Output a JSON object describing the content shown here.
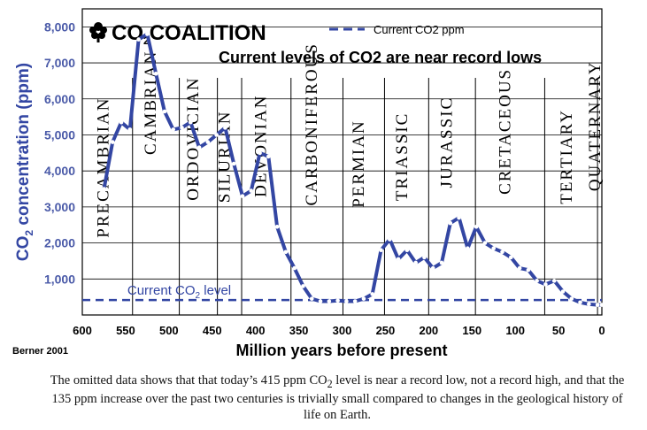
{
  "chart_data": {
    "type": "line",
    "brand": {
      "prefix": "CO",
      "sub": "2",
      "suffix": "COALITION"
    },
    "title": "Current levels of CO2 are near record lows",
    "legend": {
      "label": "Current CO2 ppm",
      "placement": "top-right"
    },
    "current_level": {
      "label_prefix": "Current CO",
      "label_sub": "2",
      "label_suffix": " level",
      "value": 415
    },
    "ylabel": {
      "prefix": "CO",
      "sub": "2",
      "suffix": " concentration (ppm)"
    },
    "xlabel": "Million years before present",
    "source": "Berner 2001",
    "xlim": [
      600,
      0
    ],
    "ylim": [
      0,
      8500
    ],
    "x_ticks": [
      600,
      550,
      500,
      450,
      400,
      350,
      300,
      250,
      200,
      150,
      100,
      50,
      0
    ],
    "y_ticks": [
      {
        "value": 1000,
        "label": "1,000"
      },
      {
        "value": 2000,
        "label": "2,000"
      },
      {
        "value": 3000,
        "label": "3,000"
      },
      {
        "value": 4000,
        "label": "4,000"
      },
      {
        "value": 5000,
        "label": "5,000"
      },
      {
        "value": 6000,
        "label": "6,000"
      },
      {
        "value": 7000,
        "label": "7,000"
      },
      {
        "value": 8000,
        "label": "8,000"
      }
    ],
    "period_boundaries": [
      542,
      488,
      444,
      416,
      359,
      299,
      251,
      200,
      146,
      66,
      5
    ],
    "periods": [
      {
        "name": "PRECAMBRIAN",
        "x": 570,
        "y": 4100
      },
      {
        "name": "CAMBRIAN",
        "x": 515,
        "y": 5900
      },
      {
        "name": "ORDOVICIAN",
        "x": 466,
        "y": 4900
      },
      {
        "name": "SILURIAN",
        "x": 430,
        "y": 4400
      },
      {
        "name": "DEVONIAN",
        "x": 388,
        "y": 4700
      },
      {
        "name": "CARBONIFEROUS",
        "x": 329,
        "y": 5300
      },
      {
        "name": "PERMIAN",
        "x": 275,
        "y": 4200
      },
      {
        "name": "TRIASSIC",
        "x": 225,
        "y": 4400
      },
      {
        "name": "JURASSIC",
        "x": 173,
        "y": 4800
      },
      {
        "name": "CRETACEOUS",
        "x": 106,
        "y": 5100
      },
      {
        "name": "TERTIARY",
        "x": 35,
        "y": 4400
      },
      {
        "name": "QUATERNARY",
        "x": 2,
        "y": 5250
      }
    ],
    "series": [
      {
        "name": "CO2 concentration",
        "x": [
          575,
          565,
          555,
          545,
          535,
          525,
          515,
          505,
          495,
          485,
          475,
          465,
          455,
          445,
          435,
          425,
          415,
          405,
          395,
          385,
          375,
          365,
          355,
          345,
          335,
          325,
          315,
          305,
          295,
          285,
          275,
          265,
          255,
          245,
          235,
          225,
          215,
          205,
          195,
          185,
          175,
          165,
          155,
          145,
          135,
          125,
          115,
          105,
          95,
          85,
          75,
          65,
          55,
          45,
          35,
          25,
          15,
          5,
          0
        ],
        "values": [
          3500,
          4800,
          5350,
          5150,
          7650,
          7800,
          6700,
          5650,
          5150,
          5200,
          5350,
          4650,
          4800,
          5000,
          5200,
          4200,
          3300,
          3450,
          4500,
          4400,
          2450,
          1750,
          1300,
          800,
          450,
          380,
          380,
          400,
          380,
          380,
          450,
          580,
          1800,
          2100,
          1550,
          1800,
          1450,
          1600,
          1300,
          1450,
          2550,
          2700,
          1850,
          2450,
          2000,
          1850,
          1750,
          1600,
          1300,
          1250,
          950,
          850,
          950,
          650,
          450,
          350,
          300,
          280,
          280
        ]
      }
    ]
  },
  "caption": {
    "before": "The omitted data shows that that today’s 415 ppm CO",
    "sub": "2",
    "after": " level is near a record low, not a record high, and that the 135 ppm increase over the past two centuries is trivially small compared to changes in the geological history of life on Earth."
  },
  "colors": {
    "line": "#3346a3",
    "axis_text": "#4a5aa8",
    "grid": "#000000"
  }
}
